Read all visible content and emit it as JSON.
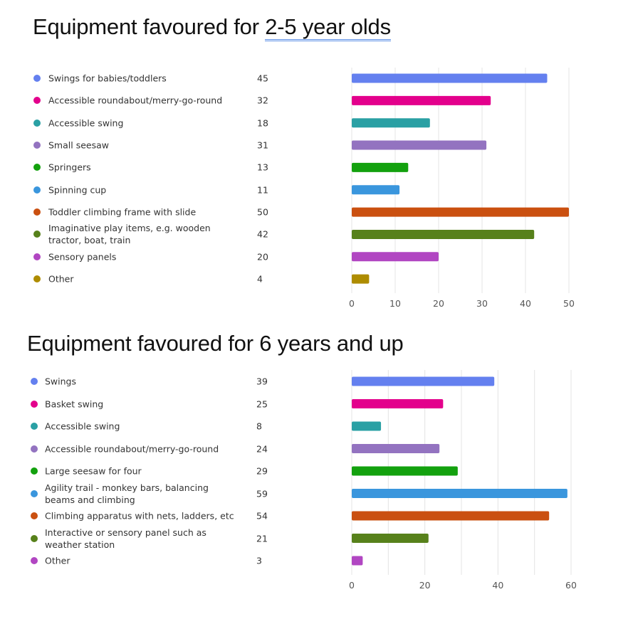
{
  "chart_data": [
    {
      "type": "bar",
      "orientation": "horizontal",
      "title_prefix": "Equipment favoured for ",
      "title_link": "2-5 year olds",
      "categories": [
        "Swings for babies/toddlers",
        "Accessible roundabout/merry-go-round",
        "Accessible swing",
        "Small seesaw",
        "Springers",
        "Spinning cup",
        "Toddler climbing frame with slide",
        "Imaginative play items, e.g. wooden tractor, boat, train",
        "Sensory panels",
        "Other"
      ],
      "values": [
        45,
        32,
        18,
        31,
        13,
        11,
        50,
        42,
        20,
        4
      ],
      "colors": [
        "#6480ef",
        "#e3008c",
        "#2aa0a4",
        "#9373c0",
        "#13a10e",
        "#3a96dd",
        "#ca5010",
        "#57811b",
        "#b146c2",
        "#ae8c00"
      ],
      "xlim": [
        0,
        50
      ],
      "xticks": [
        "0",
        "10",
        "20",
        "30",
        "40",
        "50"
      ],
      "grid": true,
      "legend": "left"
    },
    {
      "type": "bar",
      "orientation": "horizontal",
      "title_prefix": "Equipment favoured for 6 years and up",
      "title_link": "",
      "categories": [
        "Swings",
        "Basket swing",
        "Accessible swing",
        "Accessible roundabout/merry-go-round",
        "Large seesaw for four",
        "Agility trail - monkey bars, balancing beams and climbing",
        "Climbing apparatus with nets, ladders, etc",
        "Interactive or sensory panel such as weather station",
        "Other"
      ],
      "values": [
        39,
        25,
        8,
        24,
        29,
        59,
        54,
        21,
        3
      ],
      "colors": [
        "#6480ef",
        "#e3008c",
        "#2aa0a4",
        "#9373c0",
        "#13a10e",
        "#3a96dd",
        "#ca5010",
        "#57811b",
        "#b146c2"
      ],
      "xlim": [
        0,
        60
      ],
      "xticks": [
        "0",
        "20",
        "40",
        "60"
      ],
      "grid": true,
      "legend": "left"
    }
  ]
}
